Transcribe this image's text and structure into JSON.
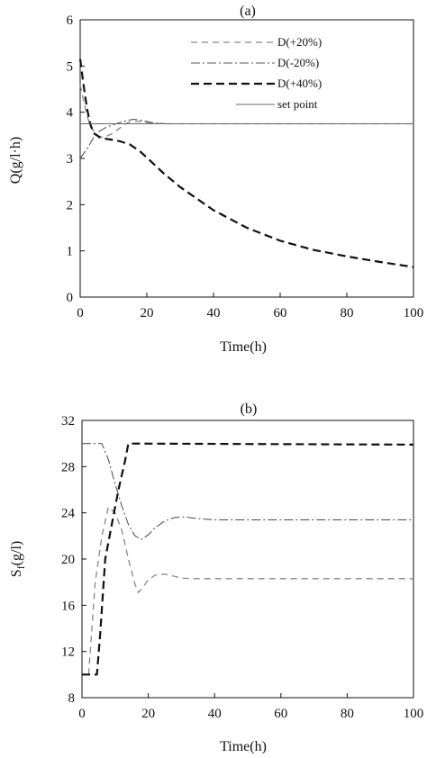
{
  "chart_data": [
    {
      "type": "line",
      "title": "(a)",
      "xlabel": "Time(h)",
      "ylabel": "Q(g/l·h)",
      "xlim": [
        0,
        100
      ],
      "ylim": [
        0,
        6
      ],
      "xticks": [
        0,
        20,
        40,
        60,
        80,
        100
      ],
      "yticks": [
        0,
        1,
        2,
        3,
        4,
        5,
        6
      ],
      "grid": false,
      "legend_position": "top-right",
      "series": [
        {
          "name": "D(+20%)",
          "style": "dashed-light",
          "x": [
            0,
            1,
            2,
            3,
            5,
            7,
            10,
            13,
            15,
            18,
            22,
            26,
            30,
            40,
            60,
            80,
            100
          ],
          "y": [
            4.6,
            4.25,
            3.95,
            3.7,
            3.5,
            3.45,
            3.55,
            3.72,
            3.8,
            3.8,
            3.76,
            3.75,
            3.75,
            3.75,
            3.75,
            3.75,
            3.75
          ]
        },
        {
          "name": "D(-20%)",
          "style": "dashdot",
          "x": [
            0,
            2,
            4,
            6,
            8,
            10,
            12,
            14,
            16,
            18,
            22,
            26,
            30,
            40,
            60,
            80,
            100
          ],
          "y": [
            3.0,
            3.2,
            3.45,
            3.6,
            3.68,
            3.73,
            3.78,
            3.82,
            3.85,
            3.83,
            3.77,
            3.75,
            3.75,
            3.75,
            3.75,
            3.75,
            3.75
          ]
        },
        {
          "name": "D(+40%)",
          "style": "dashed-bold",
          "x": [
            0,
            1,
            2,
            3,
            4,
            6,
            8,
            10,
            12,
            15,
            18,
            20,
            25,
            30,
            40,
            50,
            60,
            70,
            80,
            90,
            100
          ],
          "y": [
            5.15,
            4.6,
            4.1,
            3.75,
            3.55,
            3.45,
            3.42,
            3.4,
            3.37,
            3.3,
            3.15,
            3.02,
            2.68,
            2.38,
            1.88,
            1.5,
            1.22,
            1.02,
            0.88,
            0.76,
            0.65
          ]
        },
        {
          "name": "set point",
          "style": "solid",
          "x": [
            0,
            100
          ],
          "y": [
            3.75,
            3.75
          ]
        }
      ]
    },
    {
      "type": "line",
      "title": "(b)",
      "xlabel": "Time(h)",
      "ylabel": "Sf(g/l)",
      "ylabel_main": "S",
      "ylabel_sub": "f",
      "ylabel_rest": "(g/l)",
      "xlim": [
        0,
        100
      ],
      "ylim": [
        8,
        32
      ],
      "xticks": [
        0,
        20,
        40,
        60,
        80,
        100
      ],
      "yticks": [
        8,
        12,
        16,
        20,
        24,
        28,
        32
      ],
      "grid": false,
      "series": [
        {
          "name": "D(+20%)",
          "style": "dashed-light",
          "x": [
            2,
            3,
            4,
            6,
            8,
            10,
            12,
            14,
            16,
            17,
            18,
            20,
            22,
            25,
            28,
            30,
            35,
            40,
            60,
            80,
            100
          ],
          "y": [
            10,
            14,
            18,
            22,
            24.5,
            24,
            22.5,
            20,
            17.8,
            17.1,
            17.4,
            18.2,
            18.6,
            18.7,
            18.5,
            18.35,
            18.3,
            18.3,
            18.3,
            18.3,
            18.3
          ]
        },
        {
          "name": "D(-20%)",
          "style": "dashdot",
          "x": [
            0,
            6,
            8,
            10,
            12,
            14,
            16,
            18,
            20,
            22,
            25,
            28,
            31,
            35,
            40,
            45,
            60,
            80,
            100
          ],
          "y": [
            30,
            30,
            28.6,
            26.5,
            24.6,
            23,
            22,
            21.7,
            22.1,
            22.7,
            23.3,
            23.6,
            23.65,
            23.5,
            23.4,
            23.4,
            23.4,
            23.4,
            23.4
          ]
        },
        {
          "name": "D(+40%)",
          "style": "dashed-bold",
          "x": [
            0,
            3,
            4.5,
            5.5,
            7,
            9,
            11,
            13,
            14,
            15,
            100
          ],
          "y": [
            10,
            10,
            10,
            13.5,
            20,
            23,
            26,
            28.5,
            30,
            30,
            29.9
          ]
        }
      ]
    }
  ]
}
